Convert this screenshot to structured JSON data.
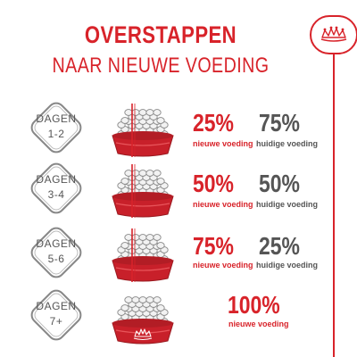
{
  "title": {
    "line1": "OVERSTAPPEN",
    "line2": "NAAR NIEUWE VOEDING"
  },
  "brand": {
    "logo_icon": "royal-canin-crown-icon",
    "color": "#d8232a"
  },
  "colors": {
    "accent": "#d8232a",
    "grey": "#555555"
  },
  "steps": [
    {
      "day_label": "DAGEN",
      "day_range": "1-2",
      "new_percent": "25%",
      "new_label": "nieuwe voeding",
      "current_percent": "75%",
      "current_label": "huidige voeding",
      "new_fraction": 0.25
    },
    {
      "day_label": "DAGEN",
      "day_range": "3-4",
      "new_percent": "50%",
      "new_label": "nieuwe voeding",
      "current_percent": "50%",
      "current_label": "huidige voeding",
      "new_fraction": 0.5
    },
    {
      "day_label": "DAGEN",
      "day_range": "5-6",
      "new_percent": "75%",
      "new_label": "nieuwe voeding",
      "current_percent": "25%",
      "current_label": "huidige voeding",
      "new_fraction": 0.75
    },
    {
      "day_label": "DAGEN",
      "day_range": "7+",
      "new_percent": "100%",
      "new_label": "nieuwe voeding",
      "new_fraction": 1.0
    }
  ]
}
